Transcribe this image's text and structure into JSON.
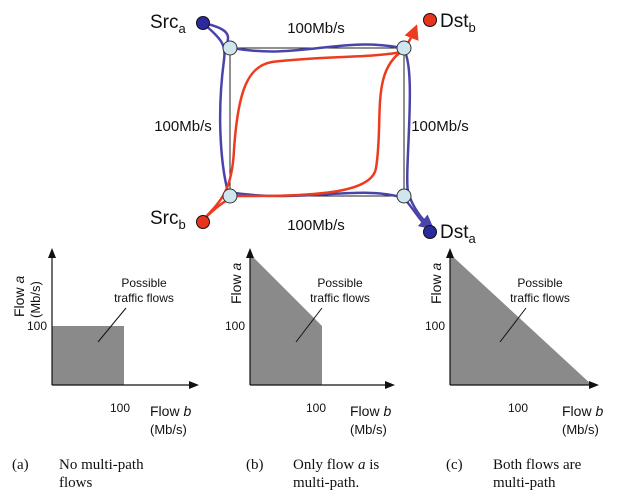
{
  "network": {
    "nodes": {
      "src_a": {
        "main": "Src",
        "sub": "a"
      },
      "dst_b": {
        "main": "Dst",
        "sub": "b"
      },
      "src_b": {
        "main": "Src",
        "sub": "b"
      },
      "dst_a": {
        "main": "Dst",
        "sub": "a"
      }
    },
    "links": {
      "top": "100Mb/s",
      "left": "100Mb/s",
      "right": "100Mb/s",
      "bottom": "100Mb/s"
    },
    "colors": {
      "flow_a": "#4a44a8",
      "flow_b": "#ee3b1e",
      "router": "#cfe6ee",
      "node_a": "#2b2a9c",
      "node_b": "#e8341c"
    }
  },
  "plots": [
    {
      "y_label_main": "Flow ",
      "y_label_var": "a",
      "y_unit": "(Mb/s)",
      "x_label_main": "Flow ",
      "x_label_var": "b",
      "x_unit": "(Mb/s)",
      "tick_100_y": "100",
      "tick_100_x": "100",
      "annotation_1": "Possible",
      "annotation_2": "traffic flows",
      "region": [
        [
          0,
          0
        ],
        [
          0,
          100
        ],
        [
          100,
          100
        ],
        [
          100,
          0
        ]
      ]
    },
    {
      "y_label_main": "Flow ",
      "y_label_var": "a",
      "y_unit": "",
      "x_label_main": "Flow ",
      "x_label_var": "b",
      "x_unit": "(Mb/s)",
      "tick_100_y": "100",
      "tick_100_x": "100",
      "annotation_1": "Possible",
      "annotation_2": "traffic flows",
      "region": [
        [
          0,
          0
        ],
        [
          0,
          200
        ],
        [
          100,
          100
        ],
        [
          100,
          0
        ]
      ]
    },
    {
      "y_label_main": "Flow ",
      "y_label_var": "a",
      "y_unit": "",
      "x_label_main": "Flow ",
      "x_label_var": "b",
      "x_unit": "(Mb/s)",
      "tick_100_y": "100",
      "tick_100_x": "100",
      "annotation_1": "Possible",
      "annotation_2": "traffic flows",
      "region": [
        [
          0,
          0
        ],
        [
          0,
          200
        ],
        [
          200,
          0
        ]
      ]
    }
  ],
  "captions": [
    {
      "letter": "(a)",
      "text": "No multi-path flows"
    },
    {
      "letter": "(b)",
      "text_pre": "Only flow ",
      "text_var": "a",
      "text_post": " is multi-path."
    },
    {
      "letter": "(c)",
      "text": "Both flows are multi-path"
    }
  ]
}
